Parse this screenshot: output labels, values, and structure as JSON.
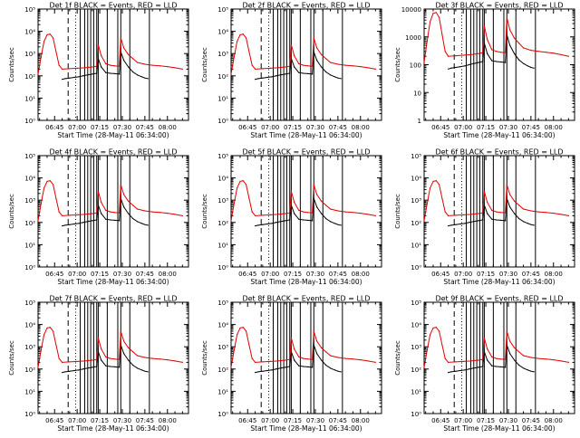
{
  "chart_data": {
    "type": "line",
    "panels": [
      {
        "title": "Det 1f BLACK = Events, RED = LLD",
        "ylabel": "Counts/sec",
        "xlabel": "Start Time (28-May-11 06:34:00)",
        "y_scale": "log",
        "ylim": [
          1,
          100000
        ],
        "y_ticks": [
          "10⁰",
          "10¹",
          "10²",
          "10³",
          "10⁴",
          "10⁵"
        ],
        "x_ticks": [
          "06:45",
          "07:00",
          "07:15",
          "07:30",
          "07:45",
          "08:00"
        ]
      },
      {
        "title": "Det 2f BLACK = Events, RED = LLD",
        "ylabel": "Counts/sec",
        "xlabel": "Start Time (28-May-11 06:34:00)",
        "y_scale": "log",
        "ylim": [
          1,
          100000
        ],
        "y_ticks": [
          "10⁰",
          "10¹",
          "10²",
          "10³",
          "10⁴",
          "10⁵"
        ],
        "x_ticks": [
          "06:45",
          "07:00",
          "07:15",
          "07:30",
          "07:45",
          "08:00"
        ]
      },
      {
        "title": "Det 3f BLACK = Events, RED = LLD",
        "ylabel": "Counts/sec",
        "xlabel": "Start Time (28-May-11 06:34:00)",
        "y_scale": "log",
        "ylim": [
          1,
          10000
        ],
        "y_ticks": [
          "1",
          "10",
          "100",
          "1000",
          "10000"
        ],
        "x_ticks": [
          "06:45",
          "07:00",
          "07:15",
          "07:30",
          "07:45",
          "08:00"
        ]
      },
      {
        "title": "Det 4f BLACK = Events, RED = LLD",
        "ylabel": "Counts/sec",
        "xlabel": "Start Time (28-May-11 06:34:00)",
        "y_scale": "log",
        "ylim": [
          1,
          100000
        ],
        "y_ticks": [
          "10⁰",
          "10¹",
          "10²",
          "10³",
          "10⁴",
          "10⁵"
        ],
        "x_ticks": [
          "06:45",
          "07:00",
          "07:15",
          "07:30",
          "07:45",
          "08:00"
        ]
      },
      {
        "title": "Det 5f BLACK = Events, RED = LLD",
        "ylabel": "Counts/sec",
        "xlabel": "Start Time (28-May-11 06:34:00)",
        "y_scale": "log",
        "ylim": [
          1,
          100000
        ],
        "y_ticks": [
          "10⁰",
          "10¹",
          "10²",
          "10³",
          "10⁴",
          "10⁵"
        ],
        "x_ticks": [
          "06:45",
          "07:00",
          "07:15",
          "07:30",
          "07:45",
          "08:00"
        ]
      },
      {
        "title": "Det 6f BLACK = Events, RED = LLD",
        "ylabel": "Counts/sec",
        "xlabel": "Start Time (28-May-11 06:34:00)",
        "y_scale": "log",
        "ylim": [
          1,
          100000
        ],
        "y_ticks": [
          "10⁰",
          "10¹",
          "10²",
          "10³",
          "10⁴",
          "10⁵"
        ],
        "x_ticks": [
          "06:45",
          "07:00",
          "07:15",
          "07:30",
          "07:45",
          "08:00"
        ]
      },
      {
        "title": "Det 7f BLACK = Events, RED = LLD",
        "ylabel": "Counts/sec",
        "xlabel": "Start Time (28-May-11 06:34:00)",
        "y_scale": "log",
        "ylim": [
          1,
          100000
        ],
        "y_ticks": [
          "10⁰",
          "10¹",
          "10²",
          "10³",
          "10⁴",
          "10⁵"
        ],
        "x_ticks": [
          "06:45",
          "07:00",
          "07:15",
          "07:30",
          "07:45",
          "08:00"
        ]
      },
      {
        "title": "Det 8f BLACK = Events, RED = LLD",
        "ylabel": "Counts/sec",
        "xlabel": "Start Time (28-May-11 06:34:00)",
        "y_scale": "log",
        "ylim": [
          1,
          100000
        ],
        "y_ticks": [
          "10⁰",
          "10¹",
          "10²",
          "10³",
          "10⁴",
          "10⁵"
        ],
        "x_ticks": [
          "06:45",
          "07:00",
          "07:15",
          "07:30",
          "07:45",
          "08:00"
        ]
      },
      {
        "title": "Det 9f BLACK = Events, RED = LLD",
        "ylabel": "Counts/sec",
        "xlabel": "Start Time (28-May-11 06:34:00)",
        "y_scale": "log",
        "ylim": [
          1,
          100000
        ],
        "y_ticks": [
          "10⁰",
          "10¹",
          "10²",
          "10³",
          "10⁴",
          "10⁵"
        ],
        "x_ticks": [
          "06:45",
          "07:00",
          "07:15",
          "07:30",
          "07:45",
          "08:00"
        ]
      }
    ],
    "x_domain": [
      "06:34",
      "08:14"
    ],
    "series": [
      {
        "name": "Events",
        "color": "#000000",
        "x": [
          "06:50",
          "06:52",
          "06:55",
          "06:58",
          "07:01",
          "07:04",
          "07:07",
          "07:10",
          "07:13",
          "07:14",
          "07:16",
          "07:19",
          "07:22",
          "07:25",
          "07:28",
          "07:29",
          "07:31",
          "07:34",
          "07:37",
          "07:40",
          "07:43",
          "07:45",
          "07:47"
        ],
        "y": [
          70,
          75,
          80,
          85,
          90,
          100,
          110,
          120,
          130,
          600,
          250,
          140,
          130,
          125,
          120,
          1200,
          500,
          250,
          150,
          110,
          90,
          80,
          75
        ]
      },
      {
        "name": "LLD",
        "color": "#e00000",
        "x": [
          "06:34",
          "06:36",
          "06:38",
          "06:40",
          "06:42",
          "06:44",
          "06:46",
          "06:48",
          "06:50",
          "06:55",
          "07:00",
          "07:05",
          "07:10",
          "07:13",
          "07:14",
          "07:16",
          "07:19",
          "07:22",
          "07:25",
          "07:28",
          "07:29",
          "07:31",
          "07:34",
          "07:37",
          "07:40",
          "07:45",
          "07:50",
          "07:55",
          "08:00",
          "08:05",
          "08:10"
        ],
        "y": [
          120,
          700,
          3500,
          7000,
          7500,
          5000,
          1200,
          300,
          200,
          210,
          220,
          230,
          250,
          270,
          2500,
          800,
          350,
          300,
          280,
          270,
          5000,
          1800,
          900,
          600,
          400,
          330,
          300,
          280,
          260,
          230,
          200
        ]
      }
    ],
    "event_markers": {
      "dashed": [
        "06:54"
      ],
      "dotted": [
        "06:59"
      ],
      "solid": [
        "07:02",
        "07:05",
        "07:07",
        "07:09",
        "07:11",
        "07:13",
        "07:14",
        "07:20",
        "07:27",
        "07:29",
        "07:35",
        "07:48"
      ]
    }
  }
}
